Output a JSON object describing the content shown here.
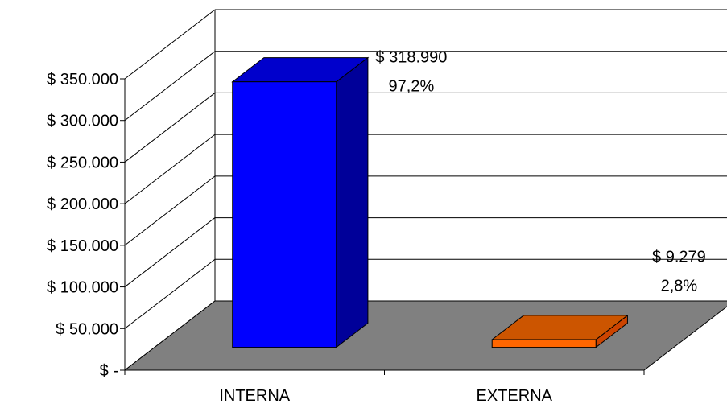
{
  "chart_data": {
    "type": "bar",
    "title": "",
    "xlabel": "",
    "ylabel": "",
    "categories": [
      "INTERNA",
      "EXTERNA"
    ],
    "values": [
      318990,
      9279
    ],
    "value_labels": [
      "$ 318.990",
      "$ 9.279"
    ],
    "percent_labels": [
      "97,2%",
      "2,8%"
    ],
    "ylim": [
      0,
      350000
    ],
    "ytick_values": [
      0,
      50000,
      100000,
      150000,
      200000,
      250000,
      300000,
      350000
    ],
    "ytick_labels": [
      "$ -",
      "$ 50.000",
      "$ 100.000",
      "$ 150.000",
      "$ 200.000",
      "$ 250.000",
      "$ 300.000",
      "$ 350.000"
    ],
    "grid": true,
    "legend": "none",
    "bar_colors": [
      "#0000ff",
      "#ff6600"
    ],
    "bar_dark_colors": [
      "#000099",
      "#cc4400"
    ],
    "floor_color": "#808080",
    "three_d": true
  }
}
